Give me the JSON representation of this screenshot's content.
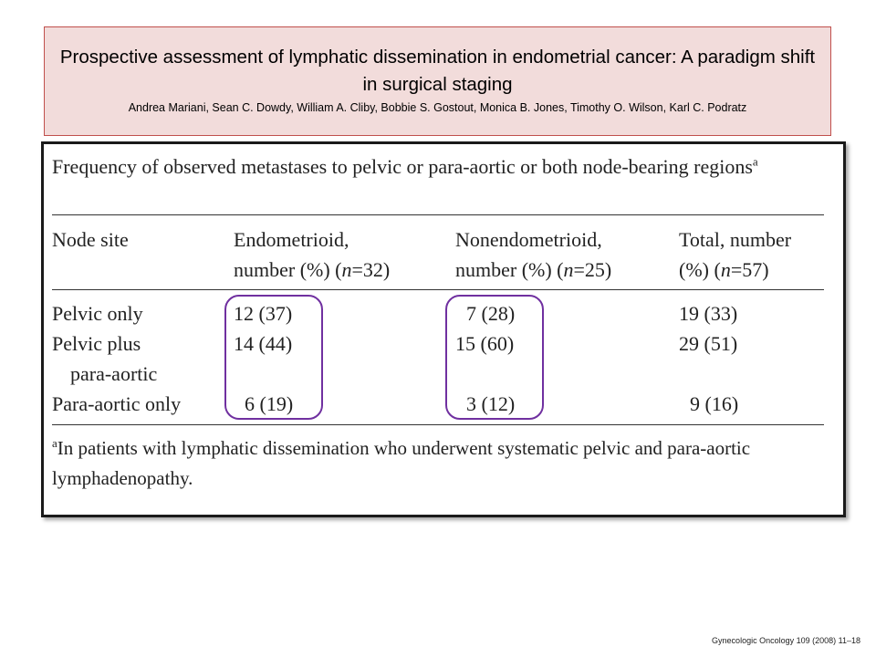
{
  "slide": {
    "title": "Prospective assessment of lymphatic dissemination in endometrial cancer: A paradigm shift in surgical staging",
    "authors": "Andrea Mariani, Sean C. Dowdy, William A. Cliby, Bobbie S. Gostout,  Monica B. Jones, Timothy O. Wilson, Karl C. Podratz",
    "citation": "Gynecologic Oncology 109 (2008) 11–18"
  },
  "table": {
    "caption": "Frequency of observed metastases to pelvic or para-aortic or both node-bearing regions",
    "caption_sup": "a",
    "headers": [
      {
        "line1": "Node site",
        "line2": ""
      },
      {
        "line1": "Endometrioid,",
        "line2a": "number (%) (",
        "n": "n",
        "line2b": "=32)"
      },
      {
        "line1": "Nonendometrioid,",
        "line2a": "number (%) (",
        "n": "n",
        "line2b": "=25)"
      },
      {
        "line1": "Total, number",
        "line2a": "(%) (",
        "n": "n",
        "line2b": "=57)"
      }
    ],
    "rows": [
      {
        "site": "Pelvic only",
        "site2": "",
        "endo": "12 (37)",
        "nonendo": "7 (28)",
        "total": "19 (33)"
      },
      {
        "site": "Pelvic plus",
        "site2": "para-aortic",
        "endo": "14 (44)",
        "nonendo": "15 (60)",
        "total": "29 (51)"
      },
      {
        "site": "Para-aortic only",
        "site2": "",
        "endo": "6 (19)",
        "nonendo": "3 (12)",
        "total": "9 (16)"
      }
    ],
    "footnote_sup": "a",
    "footnote": "In patients with lymphatic dissemination who underwent systematic pelvic and para-aortic lymphadenopathy."
  },
  "colors": {
    "title_bg": "#f2dcdb",
    "title_border": "#c0504d",
    "highlight_oval": "#7030a0"
  }
}
